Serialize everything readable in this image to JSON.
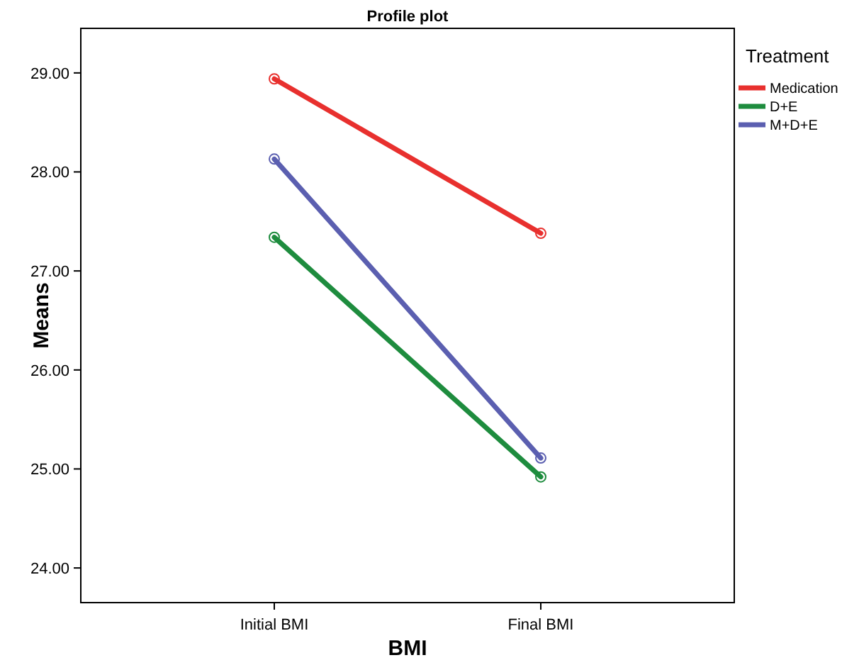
{
  "chart_data": {
    "type": "line",
    "title": "Profile plot",
    "xlabel": "BMI",
    "ylabel": "Means",
    "legend_title": "Treatment",
    "categories": [
      "Initial BMI",
      "Final BMI"
    ],
    "series": [
      {
        "name": "Medication",
        "color": "#e8302e",
        "values": [
          28.94,
          27.38
        ]
      },
      {
        "name": "D+E",
        "color": "#1e8c3e",
        "values": [
          27.34,
          24.92
        ]
      },
      {
        "name": "M+D+E",
        "color": "#5b5fb0",
        "values": [
          28.13,
          25.11
        ]
      }
    ],
    "ylim": [
      23.65,
      29.45
    ],
    "yticks": [
      {
        "value": 24,
        "label": "24.00"
      },
      {
        "value": 25,
        "label": "25.00"
      },
      {
        "value": 26,
        "label": "26.00"
      },
      {
        "value": 27,
        "label": "27.00"
      },
      {
        "value": 28,
        "label": "28.00"
      },
      {
        "value": 29,
        "label": "29.00"
      }
    ],
    "legend": "top right",
    "marker": "circle",
    "grid": false
  }
}
